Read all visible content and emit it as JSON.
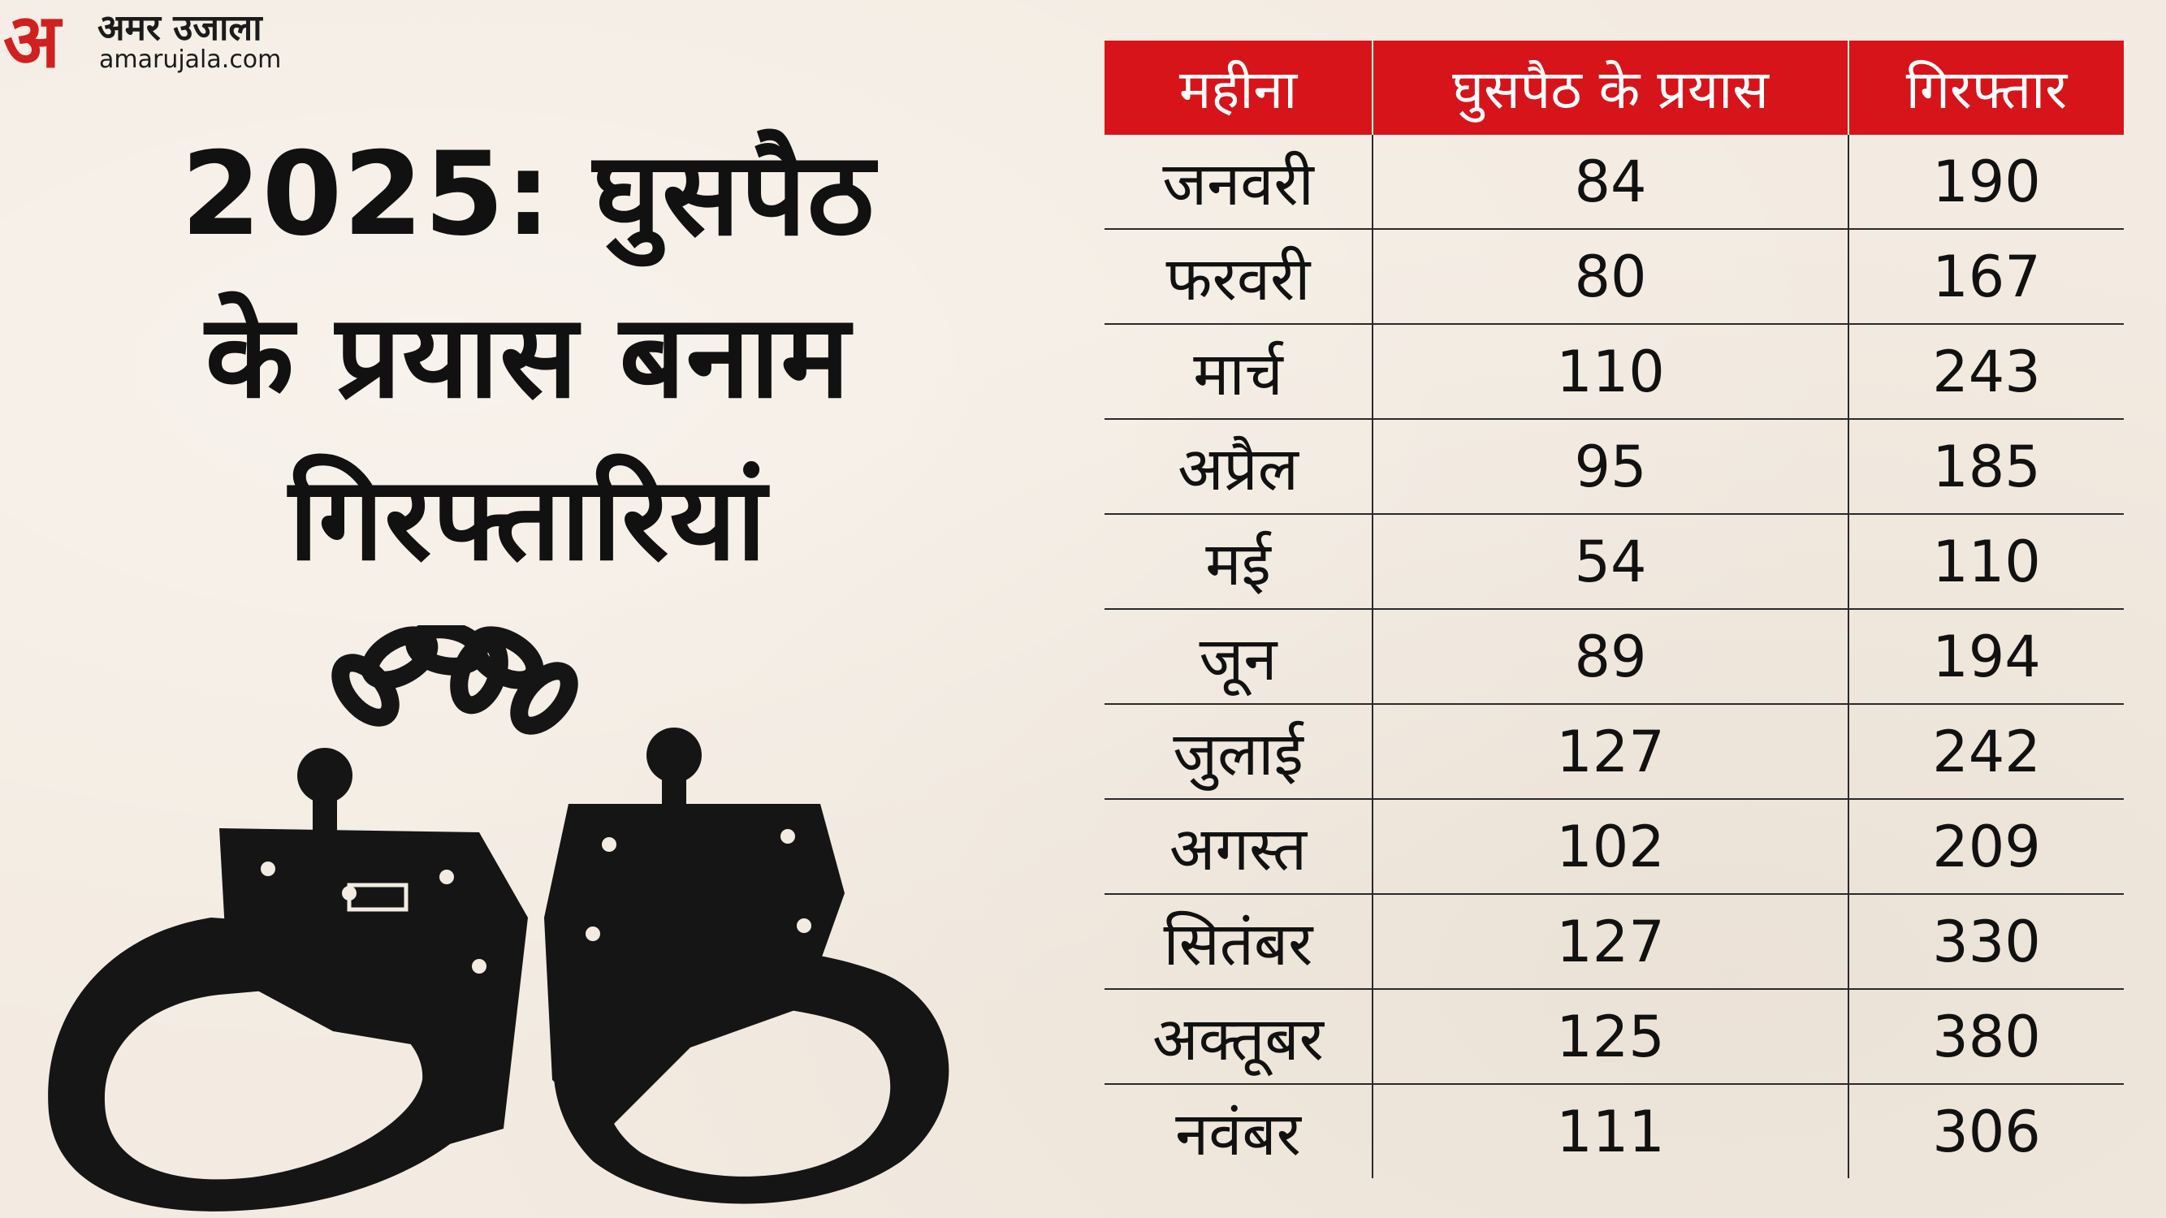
{
  "logo": {
    "mark": "अ",
    "name": "अमर उजाला",
    "site": "amarujala.com",
    "color": "#d0211f"
  },
  "title": {
    "lines": [
      "2025: घुसपैठ",
      "के प्रयास बनाम",
      "गिरफ्तारियां"
    ]
  },
  "colors": {
    "header_bg": "#d6141a",
    "background": "#f3ebe1",
    "text": "#111111"
  },
  "chart_data": {
    "type": "table",
    "columns": [
      "महीना",
      "घुसपैठ के प्रयास",
      "गिरफ्तार"
    ],
    "rows": [
      [
        "जनवरी",
        84,
        190
      ],
      [
        "फरवरी",
        80,
        167
      ],
      [
        "मार्च",
        110,
        243
      ],
      [
        "अप्रैल",
        95,
        185
      ],
      [
        "मई",
        54,
        110
      ],
      [
        "जून",
        89,
        194
      ],
      [
        "जुलाई",
        127,
        242
      ],
      [
        "अगस्त",
        102,
        209
      ],
      [
        "सितंबर",
        127,
        330
      ],
      [
        "अक्तूबर",
        125,
        380
      ],
      [
        "नवंबर",
        111,
        306
      ]
    ]
  },
  "illustration": {
    "icon": "handcuffs-icon"
  }
}
